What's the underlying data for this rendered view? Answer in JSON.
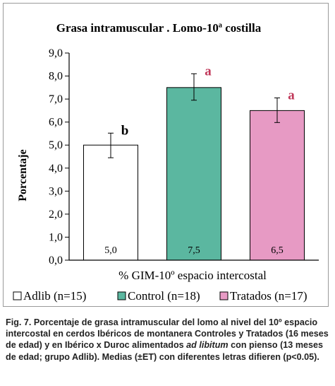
{
  "chart_data": {
    "type": "bar",
    "title": "Grasa intramuscular . Lomo-10ª costilla",
    "xlabel": "% GIM-10º espacio intercostal",
    "ylabel": "Porcentaje",
    "ylim": [
      0,
      9
    ],
    "yticks": [
      "0,0",
      "1,0",
      "2,0",
      "3,0",
      "4,0",
      "5,0",
      "6,0",
      "7,0",
      "8,0",
      "9,0"
    ],
    "grid": false,
    "legend_position": "bottom",
    "categories": [
      "Adlib (n=15)",
      "Control (n=18)",
      "Tratados (n=17)"
    ],
    "values": [
      5.0,
      7.5,
      6.5
    ],
    "value_labels": [
      "5,0",
      "7,5",
      "6,5"
    ],
    "error_low": [
      4.45,
      6.95,
      5.98
    ],
    "error_high": [
      5.52,
      8.1,
      7.05
    ],
    "significance_letters": [
      "b",
      "a",
      "a"
    ],
    "colors": [
      "#ffffff",
      "#5bb7a0",
      "#e79ac4"
    ],
    "letter_colors": [
      "#000000",
      "#c0395a",
      "#c0395a"
    ]
  },
  "caption": {
    "fig_label": "Fig. 7.",
    "text_before_italic": "Porcentaje de grasa intramuscular del lomo al nivel del 10º espacio intercostal en cerdos Ibéricos de montanera Controles y Tratados (16 meses de edad) y en Ibérico x Duroc alimentados",
    "italic": "ad libitum",
    "text_after_italic": "con pienso (13 meses de edad; grupo Adlib). Medias (±ET) con diferentes letras difieren (p<0.05)."
  }
}
